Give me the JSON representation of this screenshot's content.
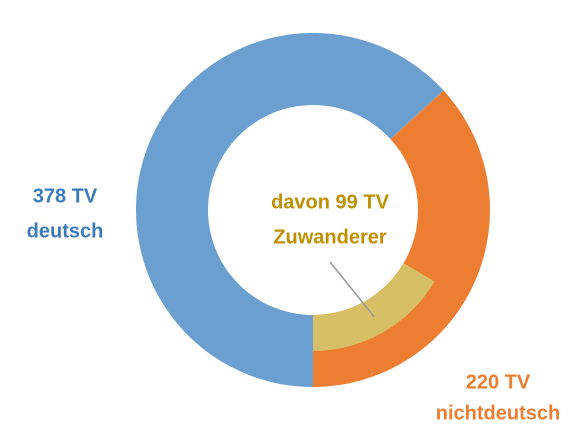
{
  "chart_data": {
    "type": "donut",
    "categories": [
      "deutsch",
      "nichtdeutsch"
    ],
    "values": [
      378,
      220
    ],
    "value_labels": [
      "378 TV",
      "220 TV"
    ],
    "colors": [
      "#6b9fcf",
      "#ed7d31"
    ],
    "label_colors": [
      "#3b7bbd",
      "#ed7d31"
    ],
    "inner": {
      "name": "Zuwanderer",
      "value": 99,
      "value_label": "davon 99 TV",
      "color": "#d6bf65",
      "label_color": "#bf9000"
    }
  }
}
